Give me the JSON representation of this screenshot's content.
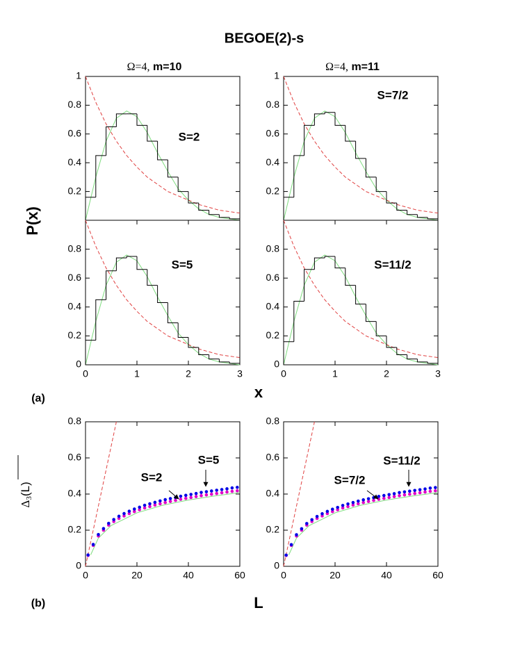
{
  "title": "BEGOE(2)-s",
  "column_titles": [
    {
      "omega": "Ω=4,",
      "m": "m=10"
    },
    {
      "omega": "Ω=4,",
      "m": "m=11"
    }
  ],
  "panel_labels": [
    "(a)",
    "(b)"
  ],
  "axes": {
    "a": {
      "xlabel": "x",
      "ylabel": "P(x)"
    },
    "b": {
      "xlabel": "L",
      "ylabel": {
        "symbol": "Δ",
        "subscript": "3",
        "argument": "(L)"
      }
    }
  },
  "chart_data": [
    {
      "type": "histogram",
      "annotations": [
        "S=2"
      ],
      "xlim": [
        0,
        3
      ],
      "ylim": [
        0,
        1
      ],
      "yticks": [
        0.2,
        0.4,
        0.6,
        0.8,
        1
      ],
      "bins": [
        0,
        0.2,
        0.4,
        0.6,
        0.8,
        1.0,
        1.2,
        1.4,
        1.6,
        1.8,
        2.0,
        2.2,
        2.4,
        2.6,
        2.8,
        3.0
      ],
      "counts": [
        0.16,
        0.45,
        0.65,
        0.74,
        0.74,
        0.66,
        0.55,
        0.42,
        0.3,
        0.2,
        0.12,
        0.07,
        0.04,
        0.02,
        0.01
      ],
      "curves": [
        {
          "color": "#7fdc7f",
          "dashed": false,
          "x": [
            0,
            0.2,
            0.4,
            0.6,
            0.8,
            1.0,
            1.2,
            1.4,
            1.6,
            1.8,
            2.0,
            2.2,
            2.4,
            2.6,
            2.8,
            3.0
          ],
          "values": [
            0,
            0.3,
            0.55,
            0.71,
            0.76,
            0.72,
            0.61,
            0.47,
            0.34,
            0.22,
            0.14,
            0.08,
            0.04,
            0.02,
            0.01,
            0
          ]
        },
        {
          "color": "#e04040",
          "dashed": true,
          "x": [
            0,
            0.2,
            0.4,
            0.6,
            0.8,
            1.0,
            1.2,
            1.4,
            1.6,
            1.8,
            2.0,
            2.2,
            2.4,
            2.6,
            2.8,
            3.0
          ],
          "values": [
            1,
            0.82,
            0.67,
            0.55,
            0.45,
            0.37,
            0.3,
            0.25,
            0.2,
            0.17,
            0.14,
            0.11,
            0.09,
            0.07,
            0.06,
            0.05
          ]
        }
      ]
    },
    {
      "type": "histogram",
      "annotations": [
        "S=7/2"
      ],
      "xlim": [
        0,
        3
      ],
      "ylim": [
        0,
        1
      ],
      "yticks": [
        0.2,
        0.4,
        0.6,
        0.8,
        1
      ],
      "bins": [
        0,
        0.2,
        0.4,
        0.6,
        0.8,
        1.0,
        1.2,
        1.4,
        1.6,
        1.8,
        2.0,
        2.2,
        2.4,
        2.6,
        2.8,
        3.0
      ],
      "counts": [
        0.16,
        0.45,
        0.66,
        0.74,
        0.75,
        0.66,
        0.55,
        0.43,
        0.3,
        0.2,
        0.12,
        0.07,
        0.04,
        0.02,
        0.01
      ],
      "curves": [
        {
          "color": "#7fdc7f",
          "dashed": false,
          "x": [
            0,
            0.2,
            0.4,
            0.6,
            0.8,
            1.0,
            1.2,
            1.4,
            1.6,
            1.8,
            2.0,
            2.2,
            2.4,
            2.6,
            2.8,
            3.0
          ],
          "values": [
            0,
            0.3,
            0.55,
            0.71,
            0.76,
            0.72,
            0.61,
            0.47,
            0.34,
            0.22,
            0.14,
            0.08,
            0.04,
            0.02,
            0.01,
            0
          ]
        },
        {
          "color": "#e04040",
          "dashed": true,
          "x": [
            0,
            0.2,
            0.4,
            0.6,
            0.8,
            1.0,
            1.2,
            1.4,
            1.6,
            1.8,
            2.0,
            2.2,
            2.4,
            2.6,
            2.8,
            3.0
          ],
          "values": [
            1,
            0.82,
            0.67,
            0.55,
            0.45,
            0.37,
            0.3,
            0.25,
            0.2,
            0.17,
            0.14,
            0.11,
            0.09,
            0.07,
            0.06,
            0.05
          ]
        }
      ]
    },
    {
      "type": "histogram",
      "annotations": [
        "S=5"
      ],
      "xlim": [
        0,
        3
      ],
      "ylim": [
        0,
        1
      ],
      "yticks": [
        0,
        0.2,
        0.4,
        0.6,
        0.8
      ],
      "xticks": [
        0,
        1,
        2,
        3
      ],
      "bins": [
        0,
        0.2,
        0.4,
        0.6,
        0.8,
        1.0,
        1.2,
        1.4,
        1.6,
        1.8,
        2.0,
        2.2,
        2.4,
        2.6,
        2.8,
        3.0
      ],
      "counts": [
        0.17,
        0.45,
        0.65,
        0.74,
        0.75,
        0.66,
        0.55,
        0.43,
        0.29,
        0.19,
        0.12,
        0.07,
        0.04,
        0.02,
        0.01
      ],
      "curves": [
        {
          "color": "#7fdc7f",
          "dashed": false,
          "x": [
            0,
            0.2,
            0.4,
            0.6,
            0.8,
            1.0,
            1.2,
            1.4,
            1.6,
            1.8,
            2.0,
            2.2,
            2.4,
            2.6,
            2.8,
            3.0
          ],
          "values": [
            0,
            0.3,
            0.55,
            0.71,
            0.76,
            0.72,
            0.61,
            0.47,
            0.34,
            0.22,
            0.14,
            0.08,
            0.04,
            0.02,
            0.01,
            0
          ]
        },
        {
          "color": "#e04040",
          "dashed": true,
          "x": [
            0,
            0.2,
            0.4,
            0.6,
            0.8,
            1.0,
            1.2,
            1.4,
            1.6,
            1.8,
            2.0,
            2.2,
            2.4,
            2.6,
            2.8,
            3.0
          ],
          "values": [
            1,
            0.82,
            0.67,
            0.55,
            0.45,
            0.37,
            0.3,
            0.25,
            0.2,
            0.17,
            0.14,
            0.11,
            0.09,
            0.07,
            0.06,
            0.05
          ]
        }
      ]
    },
    {
      "type": "histogram",
      "annotations": [
        "S=11/2"
      ],
      "xlim": [
        0,
        3
      ],
      "ylim": [
        0,
        1
      ],
      "yticks": [
        0,
        0.2,
        0.4,
        0.6,
        0.8
      ],
      "xticks": [
        0,
        1,
        2,
        3
      ],
      "bins": [
        0,
        0.2,
        0.4,
        0.6,
        0.8,
        1.0,
        1.2,
        1.4,
        1.6,
        1.8,
        2.0,
        2.2,
        2.4,
        2.6,
        2.8,
        3.0
      ],
      "counts": [
        0.16,
        0.44,
        0.66,
        0.74,
        0.75,
        0.67,
        0.55,
        0.42,
        0.3,
        0.2,
        0.12,
        0.07,
        0.04,
        0.02,
        0.01
      ],
      "curves": [
        {
          "color": "#7fdc7f",
          "dashed": false,
          "x": [
            0,
            0.2,
            0.4,
            0.6,
            0.8,
            1.0,
            1.2,
            1.4,
            1.6,
            1.8,
            2.0,
            2.2,
            2.4,
            2.6,
            2.8,
            3.0
          ],
          "values": [
            0,
            0.3,
            0.55,
            0.71,
            0.76,
            0.72,
            0.61,
            0.47,
            0.34,
            0.22,
            0.14,
            0.08,
            0.04,
            0.02,
            0.01,
            0
          ]
        },
        {
          "color": "#e04040",
          "dashed": true,
          "x": [
            0,
            0.2,
            0.4,
            0.6,
            0.8,
            1.0,
            1.2,
            1.4,
            1.6,
            1.8,
            2.0,
            2.2,
            2.4,
            2.6,
            2.8,
            3.0
          ],
          "values": [
            1,
            0.82,
            0.67,
            0.55,
            0.45,
            0.37,
            0.3,
            0.25,
            0.2,
            0.17,
            0.14,
            0.11,
            0.09,
            0.07,
            0.06,
            0.05
          ]
        }
      ]
    },
    {
      "type": "scatter",
      "annotations": [
        "S=2",
        "S=5"
      ],
      "xlim": [
        0,
        60
      ],
      "ylim": [
        0,
        0.8
      ],
      "xticks": [
        0,
        20,
        40,
        60
      ],
      "yticks": [
        0,
        0.2,
        0.4,
        0.6,
        0.8
      ],
      "x": [
        1,
        3,
        5,
        7,
        9,
        11,
        13,
        15,
        17,
        19,
        21,
        23,
        25,
        27,
        29,
        31,
        33,
        35,
        37,
        39,
        41,
        43,
        45,
        47,
        49,
        51,
        53,
        55,
        57,
        59
      ],
      "series": [
        {
          "color": "#0000e6",
          "values": [
            0.063,
            0.121,
            0.176,
            0.209,
            0.238,
            0.259,
            0.277,
            0.292,
            0.305,
            0.317,
            0.327,
            0.338,
            0.346,
            0.354,
            0.362,
            0.369,
            0.375,
            0.381,
            0.388,
            0.393,
            0.398,
            0.403,
            0.409,
            0.413,
            0.417,
            0.421,
            0.425,
            0.429,
            0.434,
            0.437
          ]
        },
        {
          "color": "#e000c8",
          "values": [
            0.06,
            0.116,
            0.168,
            0.2,
            0.228,
            0.248,
            0.265,
            0.279,
            0.292,
            0.303,
            0.313,
            0.323,
            0.331,
            0.339,
            0.346,
            0.353,
            0.359,
            0.365,
            0.371,
            0.376,
            0.381,
            0.386,
            0.391,
            0.395,
            0.399,
            0.403,
            0.407,
            0.411,
            0.415,
            0.418
          ]
        }
      ],
      "curves": [
        {
          "color": "#e04040",
          "dashed": true,
          "x": [
            0,
            12
          ],
          "values": [
            0,
            0.8
          ]
        },
        {
          "color": "#7fdc7f",
          "dashed": false,
          "x": [
            2,
            5,
            10,
            20,
            30,
            40,
            50,
            60
          ],
          "values": [
            0.063,
            0.156,
            0.226,
            0.296,
            0.338,
            0.367,
            0.389,
            0.408
          ]
        }
      ]
    },
    {
      "type": "scatter",
      "annotations": [
        "S=7/2",
        "S=11/2"
      ],
      "xlim": [
        0,
        60
      ],
      "ylim": [
        0,
        0.8
      ],
      "xticks": [
        0,
        20,
        40,
        60
      ],
      "yticks": [
        0,
        0.2,
        0.4,
        0.6,
        0.8
      ],
      "x": [
        1,
        3,
        5,
        7,
        9,
        11,
        13,
        15,
        17,
        19,
        21,
        23,
        25,
        27,
        29,
        31,
        33,
        35,
        37,
        39,
        41,
        43,
        45,
        47,
        49,
        51,
        53,
        55,
        57,
        59
      ],
      "series": [
        {
          "color": "#0000e6",
          "values": [
            0.062,
            0.12,
            0.175,
            0.208,
            0.237,
            0.258,
            0.276,
            0.291,
            0.304,
            0.316,
            0.326,
            0.337,
            0.345,
            0.353,
            0.361,
            0.368,
            0.374,
            0.38,
            0.387,
            0.392,
            0.397,
            0.402,
            0.408,
            0.412,
            0.416,
            0.42,
            0.424,
            0.428,
            0.433,
            0.436
          ]
        },
        {
          "color": "#e000c8",
          "values": [
            0.06,
            0.116,
            0.168,
            0.2,
            0.228,
            0.248,
            0.265,
            0.279,
            0.292,
            0.303,
            0.313,
            0.323,
            0.331,
            0.339,
            0.346,
            0.353,
            0.359,
            0.365,
            0.371,
            0.376,
            0.381,
            0.386,
            0.391,
            0.395,
            0.399,
            0.403,
            0.407,
            0.411,
            0.415,
            0.418
          ]
        }
      ],
      "curves": [
        {
          "color": "#e04040",
          "dashed": true,
          "x": [
            0,
            12
          ],
          "values": [
            0,
            0.8
          ]
        },
        {
          "color": "#7fdc7f",
          "dashed": false,
          "x": [
            2,
            5,
            10,
            20,
            30,
            40,
            50,
            60
          ],
          "values": [
            0.063,
            0.156,
            0.226,
            0.296,
            0.338,
            0.367,
            0.389,
            0.408
          ]
        }
      ]
    }
  ]
}
